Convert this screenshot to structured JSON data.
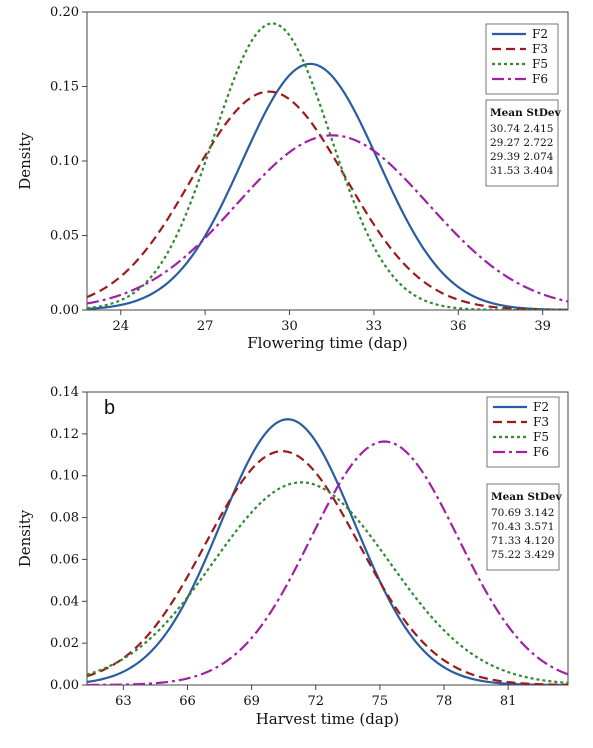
{
  "figure": {
    "charts": [
      {
        "id": "a",
        "panel_letter": "",
        "type": "line",
        "title": "",
        "xlabel": "Flowering time (dap)",
        "ylabel": "Density",
        "xlim": [
          22.8,
          39.9
        ],
        "ylim": [
          0,
          0.2
        ],
        "x_ticks": [
          24,
          27,
          30,
          33,
          36,
          39
        ],
        "y_ticks": [
          0.0,
          0.05,
          0.1,
          0.15,
          0.2
        ],
        "y_tick_labels": [
          "0.00",
          "0.05",
          "0.10",
          "0.15",
          "0.20"
        ],
        "legend": {
          "placement": "top-right",
          "stats_header": "Mean StDev",
          "entries": [
            {
              "name": "F2",
              "color": "#2a5d9f",
              "dash": "solid",
              "mean": 30.74,
              "stdev": 2.415,
              "stats": "30.74 2.415"
            },
            {
              "name": "F3",
              "color": "#9b1b1b",
              "dash": "dashed",
              "mean": 29.27,
              "stdev": 2.722,
              "stats": "29.27 2.722"
            },
            {
              "name": "F5",
              "color": "#2e8b2e",
              "dash": "dotted",
              "mean": 29.39,
              "stdev": 2.074,
              "stats": "29.39 2.074"
            },
            {
              "name": "F6",
              "color": "#a020a8",
              "dash": "dashdot",
              "mean": 31.53,
              "stdev": 3.404,
              "stats": "31.53 3.404"
            }
          ]
        }
      },
      {
        "id": "b",
        "panel_letter": "b",
        "type": "line",
        "title": "",
        "xlabel": "Harvest time (dap)",
        "ylabel": "Density",
        "xlim": [
          61.3,
          83.8
        ],
        "ylim": [
          0,
          0.14
        ],
        "x_ticks": [
          63,
          66,
          69,
          72,
          75,
          78,
          81
        ],
        "y_ticks": [
          0.0,
          0.02,
          0.04,
          0.06,
          0.08,
          0.1,
          0.12,
          0.14
        ],
        "y_tick_labels": [
          "0.00",
          "0.02",
          "0.04",
          "0.06",
          "0.08",
          "0.10",
          "0.12",
          "0.14"
        ],
        "legend": {
          "placement": "top-right",
          "stats_header": "Mean StDev",
          "entries": [
            {
              "name": "F2",
              "color": "#2a5d9f",
              "dash": "solid",
              "mean": 70.69,
              "stdev": 3.142,
              "stats": "70.69 3.142"
            },
            {
              "name": "F3",
              "color": "#9b1b1b",
              "dash": "dashed",
              "mean": 70.43,
              "stdev": 3.571,
              "stats": "70.43 3.571"
            },
            {
              "name": "F5",
              "color": "#2e8b2e",
              "dash": "dotted",
              "mean": 71.33,
              "stdev": 4.12,
              "stats": "71.33 4.120"
            },
            {
              "name": "F6",
              "color": "#a020a8",
              "dash": "dashdot",
              "mean": 75.22,
              "stdev": 3.429,
              "stats": "75.22 3.429"
            }
          ]
        }
      }
    ]
  },
  "chart_data": [
    {
      "type": "line",
      "title": "",
      "xlabel": "Flowering time (dap)",
      "ylabel": "Density",
      "xlim": [
        22.8,
        39.9
      ],
      "ylim": [
        0,
        0.2
      ],
      "grid": false,
      "legend_placement": "top-right",
      "series": [
        {
          "name": "F2",
          "distribution": "normal",
          "mean": 30.74,
          "stdev": 2.415
        },
        {
          "name": "F3",
          "distribution": "normal",
          "mean": 29.27,
          "stdev": 2.722
        },
        {
          "name": "F5",
          "distribution": "normal",
          "mean": 29.39,
          "stdev": 2.074
        },
        {
          "name": "F6",
          "distribution": "normal",
          "mean": 31.53,
          "stdev": 3.404
        }
      ]
    },
    {
      "type": "line",
      "title": "",
      "xlabel": "Harvest time (dap)",
      "ylabel": "Density",
      "xlim": [
        61.3,
        83.8
      ],
      "ylim": [
        0,
        0.14
      ],
      "grid": false,
      "legend_placement": "top-right",
      "series": [
        {
          "name": "F2",
          "distribution": "normal",
          "mean": 70.69,
          "stdev": 3.142
        },
        {
          "name": "F3",
          "distribution": "normal",
          "mean": 70.43,
          "stdev": 3.571
        },
        {
          "name": "F5",
          "distribution": "normal",
          "mean": 71.33,
          "stdev": 4.12
        },
        {
          "name": "F6",
          "distribution": "normal",
          "mean": 75.22,
          "stdev": 3.429
        }
      ]
    }
  ]
}
